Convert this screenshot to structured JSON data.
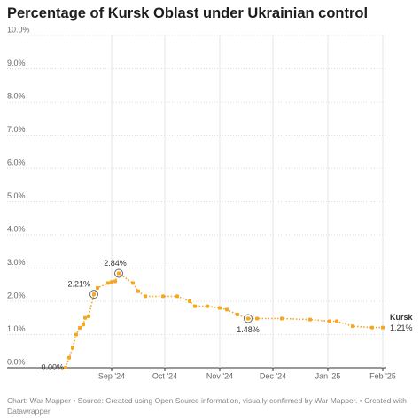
{
  "chart_data": {
    "type": "line",
    "title": "Percentage of Kursk Oblast under Ukrainian control",
    "footer": "Chart: War Mapper • Source: Created using Open Source information, visually confirmed by War Mapper. • Created with Datawrapper",
    "x": [
      "2024-08-06",
      "2024-08-08",
      "2024-08-10",
      "2024-08-12",
      "2024-08-14",
      "2024-08-16",
      "2024-08-17",
      "2024-08-19",
      "2024-08-22",
      "2024-08-24",
      "2024-08-30",
      "2024-09-01",
      "2024-09-03",
      "2024-09-05",
      "2024-09-13",
      "2024-09-16",
      "2024-09-20",
      "2024-09-30",
      "2024-10-08",
      "2024-10-15",
      "2024-10-18",
      "2024-10-25",
      "2024-11-01",
      "2024-11-05",
      "2024-11-11",
      "2024-11-17",
      "2024-11-22",
      "2024-12-06",
      "2024-12-22",
      "2025-01-02",
      "2025-01-06",
      "2025-01-15",
      "2025-01-26",
      "2025-02-01"
    ],
    "series": [
      {
        "name": "Kursk",
        "color": "#f5a623",
        "values": [
          0,
          0.3,
          0.6,
          1.0,
          1.2,
          1.3,
          1.5,
          1.55,
          2.21,
          2.4,
          2.55,
          2.58,
          2.6,
          2.84,
          2.55,
          2.3,
          2.15,
          2.15,
          2.15,
          2.0,
          1.85,
          1.85,
          1.8,
          1.75,
          1.6,
          1.48,
          1.48,
          1.48,
          1.45,
          1.4,
          1.4,
          1.25,
          1.21,
          1.21
        ],
        "value_labels": [
          "0.00%",
          null,
          null,
          null,
          null,
          null,
          null,
          null,
          "2.21%",
          null,
          null,
          null,
          null,
          "2.84%",
          null,
          null,
          null,
          null,
          null,
          null,
          null,
          null,
          null,
          null,
          null,
          "1.48%",
          null,
          null,
          null,
          null,
          null,
          null,
          null,
          "1.21%"
        ]
      }
    ],
    "xlim": [
      "2024-07-20",
      "2025-02-03"
    ],
    "xticks": [
      {
        "value": "2024-09-01",
        "label": "Sep '24"
      },
      {
        "value": "2024-10-01",
        "label": "Oct '24"
      },
      {
        "value": "2024-11-01",
        "label": "Nov '24"
      },
      {
        "value": "2024-12-01",
        "label": "Dec '24"
      },
      {
        "value": "2025-01-01",
        "label": "Jan '25"
      },
      {
        "value": "2025-02-01",
        "label": "Feb '25"
      }
    ],
    "ylim": [
      0,
      10
    ],
    "yticks": [
      {
        "value": 0,
        "label": "0.0%"
      },
      {
        "value": 1,
        "label": "1.0%"
      },
      {
        "value": 2,
        "label": "2.0%"
      },
      {
        "value": 3,
        "label": "3.0%"
      },
      {
        "value": 4,
        "label": "4.0%"
      },
      {
        "value": 5,
        "label": "5.0%"
      },
      {
        "value": 6,
        "label": "6.0%"
      },
      {
        "value": 7,
        "label": "7.0%"
      },
      {
        "value": 8,
        "label": "8.0%"
      },
      {
        "value": 9,
        "label": "9.0%"
      },
      {
        "value": 10,
        "label": "10.0%"
      }
    ],
    "grid": true
  }
}
